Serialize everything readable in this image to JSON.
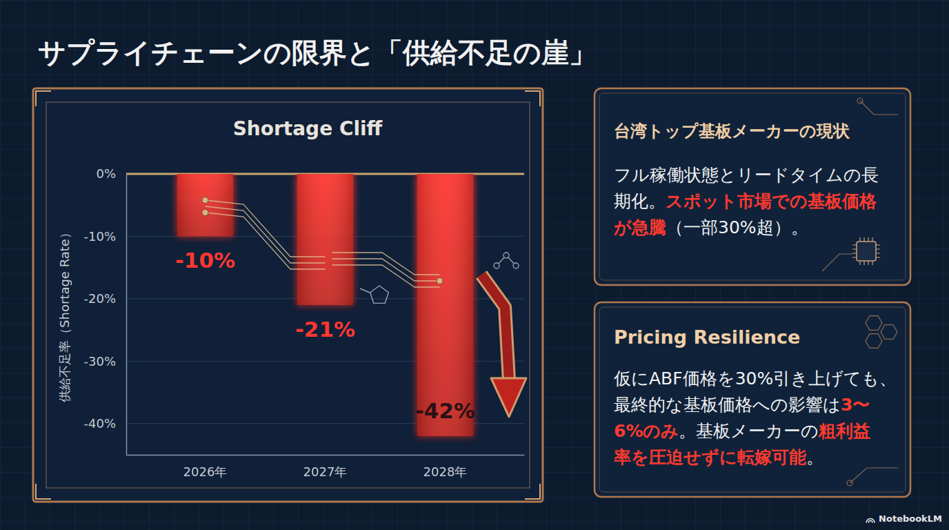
{
  "title": "サプライチェーンの限界と「供給不足の崖」",
  "chart_data": {
    "type": "bar",
    "title": "Shortage Cliff",
    "y_label": "供給不足率（Shortage Rate）",
    "categories": [
      "2026年",
      "2027年",
      "2028年"
    ],
    "values": [
      -10,
      -21,
      -42
    ],
    "value_labels": [
      "-10%",
      "-21%",
      "-42%"
    ],
    "color": "#e8302a",
    "ylim": [
      -45,
      0
    ],
    "yticks": [
      {
        "value": 0,
        "label": "0%"
      },
      {
        "value": -10,
        "label": "-10%"
      },
      {
        "value": -20,
        "label": "-20%"
      },
      {
        "value": -30,
        "label": "-30%"
      },
      {
        "value": -40,
        "label": "-40%"
      }
    ],
    "grid": true,
    "data_labels": true
  },
  "panels": [
    {
      "title": "台湾トップ基板メーカーの現状",
      "body": [
        {
          "text": "フル稼働状態とリードタイムの長期化。",
          "emphasis": false
        },
        {
          "text": "スポット市場での基板価格が急騰",
          "emphasis": true
        },
        {
          "text": "（一部30%超）。",
          "emphasis": false
        }
      ]
    },
    {
      "title": "Pricing Resilience",
      "body": [
        {
          "text": "仮にABF価格を30%引き上げても、最終的な基板価格への影響は",
          "emphasis": false
        },
        {
          "text": "3〜6%のみ",
          "emphasis": true
        },
        {
          "text": "。基板メーカーの",
          "emphasis": false
        },
        {
          "text": "粗利益率を圧迫せずに転嫁可能",
          "emphasis": true
        },
        {
          "text": "。",
          "emphasis": false
        }
      ]
    }
  ],
  "footer": "NotebookLM"
}
